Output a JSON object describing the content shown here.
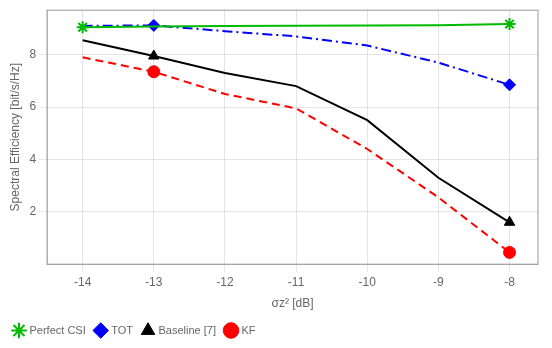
{
  "chart_data": {
    "type": "line",
    "x": [
      -14,
      -13,
      -12,
      -11,
      -10,
      -9,
      -8
    ],
    "series": [
      {
        "name": "Perfect CSI",
        "color": "#00bb00",
        "line_style": "solid",
        "marker": "star",
        "values": [
          9.05,
          9.08,
          9.1,
          9.11,
          9.12,
          9.13,
          9.17
        ],
        "marker_x": [
          -14,
          -8
        ]
      },
      {
        "name": "TOT",
        "color": "#0000ff",
        "line_style": "dashdot",
        "marker": "diamond",
        "values": [
          9.1,
          9.12,
          8.9,
          8.7,
          8.35,
          7.7,
          6.85
        ],
        "marker_x": [
          -13,
          -8
        ]
      },
      {
        "name": "Baseline [7]",
        "color": "#000000",
        "line_style": "solid",
        "marker": "triangle",
        "values": [
          8.55,
          7.95,
          7.3,
          6.8,
          5.5,
          3.3,
          1.6
        ],
        "marker_x": [
          -13,
          -8
        ]
      },
      {
        "name": "KF",
        "color": "#ff0000",
        "line_style": "dashed",
        "marker": "circle",
        "values": [
          7.9,
          7.35,
          6.5,
          5.95,
          4.4,
          2.55,
          0.45
        ],
        "marker_x": [
          -13,
          -8
        ]
      }
    ],
    "x_label": "σz² [dB]",
    "y_label": "Spectral Efficiency [bit/s/Hz]",
    "xlim": [
      -14.5,
      -7.6
    ],
    "ylim": [
      0,
      9.7
    ],
    "xticks": [
      -14,
      -13,
      -12,
      -11,
      -10,
      -9,
      -8
    ],
    "yticks": [
      2,
      4,
      6,
      8
    ],
    "grid": true,
    "legend": "lower left"
  }
}
